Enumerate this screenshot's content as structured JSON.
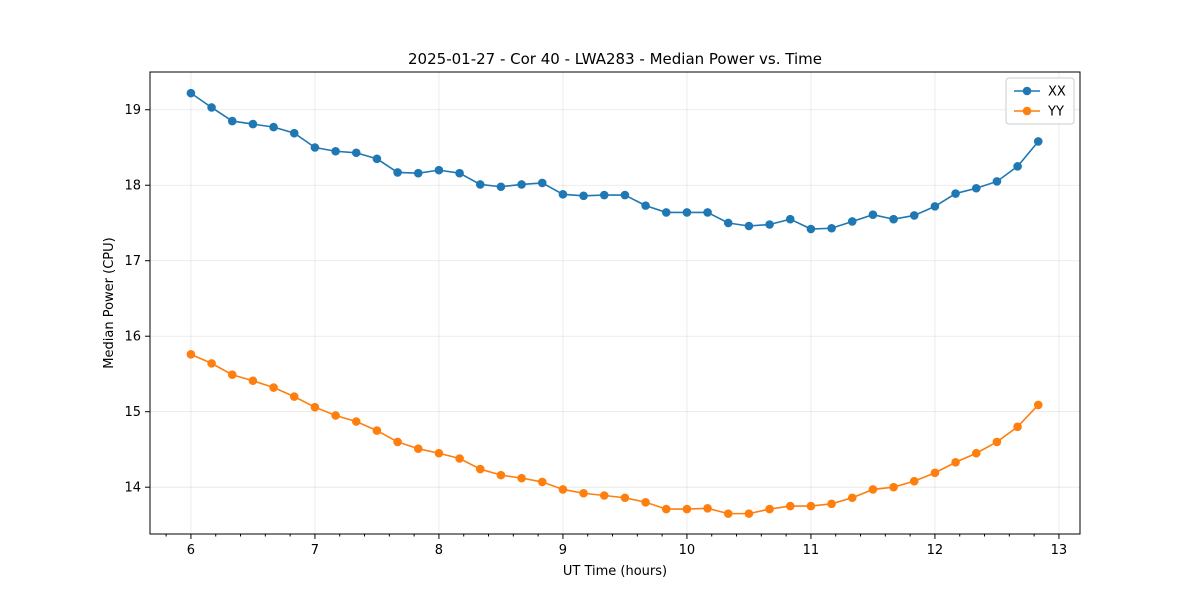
{
  "chart_data": {
    "type": "line",
    "title": "2025-01-27 - Cor 40 - LWA283 - Median Power vs. Time",
    "xlabel": "UT Time (hours)",
    "ylabel": "Median Power (CPU)",
    "xlim": [
      5.67,
      13.17
    ],
    "ylim": [
      13.38,
      19.5
    ],
    "x_ticks": [
      6,
      7,
      8,
      9,
      10,
      11,
      12,
      13
    ],
    "x_tick_labels": [
      "6",
      "7",
      "8",
      "9",
      "10",
      "11",
      "12",
      "13"
    ],
    "x_minor_step": 0.2,
    "y_ticks": [
      14,
      15,
      16,
      17,
      18,
      19
    ],
    "y_tick_labels": [
      "14",
      "15",
      "16",
      "17",
      "18",
      "19"
    ],
    "grid": true,
    "legend_position": "top-right",
    "x": [
      6.0,
      6.1667,
      6.3333,
      6.5,
      6.6667,
      6.8333,
      7.0,
      7.1667,
      7.3333,
      7.5,
      7.6667,
      7.8333,
      8.0,
      8.1667,
      8.3333,
      8.5,
      8.6667,
      8.8333,
      9.0,
      9.1667,
      9.3333,
      9.5,
      9.6667,
      9.8333,
      10.0,
      10.1667,
      10.3333,
      10.5,
      10.6667,
      10.8333,
      11.0,
      11.1667,
      11.3333,
      11.5,
      11.6667,
      11.8333,
      12.0,
      12.1667,
      12.3333,
      12.5,
      12.6667,
      12.8333
    ],
    "series": [
      {
        "name": "XX",
        "color": "#1f77b4",
        "values": [
          19.22,
          19.03,
          18.85,
          18.81,
          18.77,
          18.69,
          18.5,
          18.45,
          18.43,
          18.35,
          18.17,
          18.16,
          18.2,
          18.16,
          18.01,
          17.98,
          18.01,
          18.03,
          17.88,
          17.86,
          17.87,
          17.87,
          17.73,
          17.64,
          17.64,
          17.64,
          17.5,
          17.46,
          17.48,
          17.55,
          17.42,
          17.43,
          17.52,
          17.61,
          17.55,
          17.6,
          17.72,
          17.89,
          17.96,
          18.05,
          18.25,
          18.58
        ]
      },
      {
        "name": "YY",
        "color": "#ff7f0e",
        "values": [
          15.76,
          15.64,
          15.49,
          15.41,
          15.32,
          15.2,
          15.06,
          14.95,
          14.87,
          14.75,
          14.6,
          14.51,
          14.45,
          14.38,
          14.24,
          14.16,
          14.12,
          14.07,
          13.97,
          13.92,
          13.89,
          13.86,
          13.8,
          13.71,
          13.71,
          13.72,
          13.65,
          13.65,
          13.71,
          13.75,
          13.75,
          13.78,
          13.86,
          13.97,
          14.0,
          14.08,
          14.19,
          14.33,
          14.45,
          14.6,
          14.8,
          15.09
        ]
      }
    ]
  }
}
